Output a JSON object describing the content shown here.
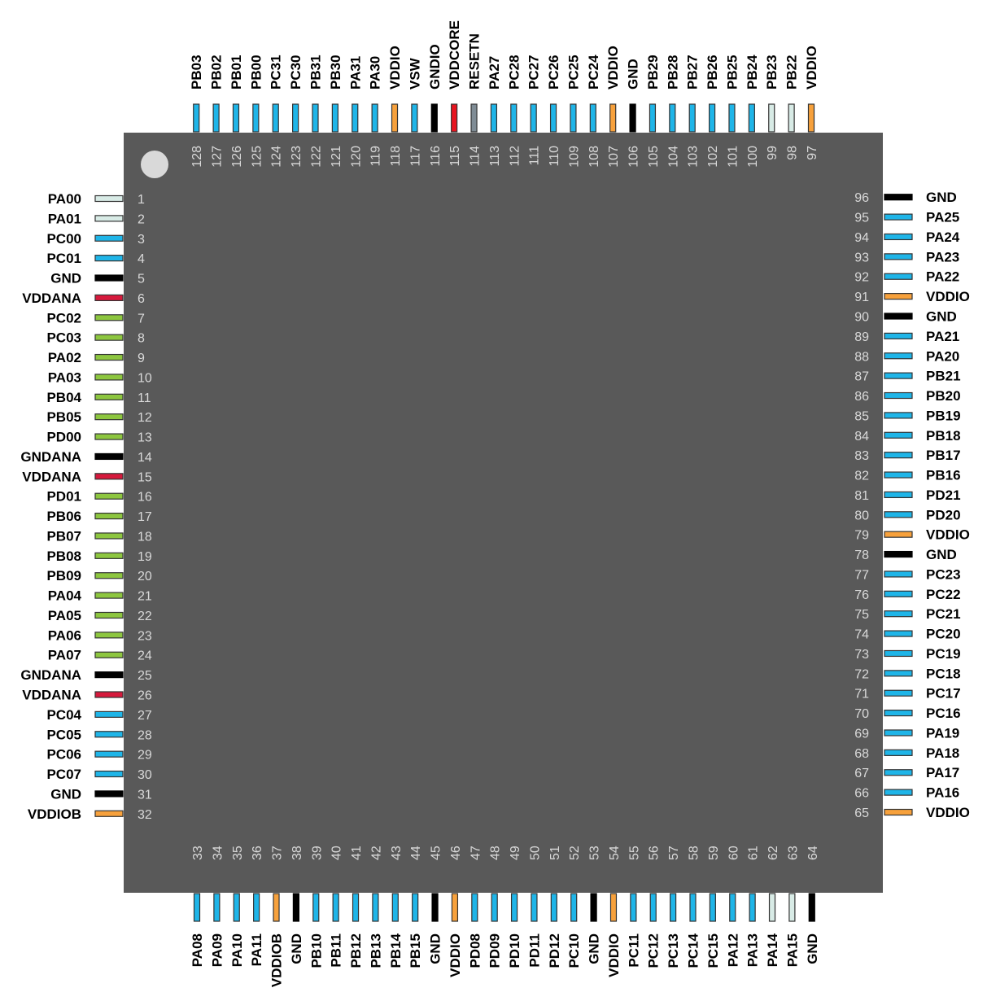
{
  "colors": {
    "body": "#595959",
    "index_dot": "#d9d9d9",
    "pin_outline": "#333333",
    "pin_types": {
      "io": "#1fb5e8",
      "analog": "#8dc63f",
      "gnd": "#000000",
      "vddio": "#f7a13c",
      "vddana": "#d6193c",
      "vddcore": "#e8141f",
      "resetn": "#7f8c95",
      "osc": "#d8ebe6"
    }
  },
  "pins": {
    "left": [
      {
        "num": "1",
        "name": "PA00",
        "type": "osc"
      },
      {
        "num": "2",
        "name": "PA01",
        "type": "osc"
      },
      {
        "num": "3",
        "name": "PC00",
        "type": "io"
      },
      {
        "num": "4",
        "name": "PC01",
        "type": "io"
      },
      {
        "num": "5",
        "name": "GND",
        "type": "gnd"
      },
      {
        "num": "6",
        "name": "VDDANA",
        "type": "vddana"
      },
      {
        "num": "7",
        "name": "PC02",
        "type": "analog"
      },
      {
        "num": "8",
        "name": "PC03",
        "type": "analog"
      },
      {
        "num": "9",
        "name": "PA02",
        "type": "analog"
      },
      {
        "num": "10",
        "name": "PA03",
        "type": "analog"
      },
      {
        "num": "11",
        "name": "PB04",
        "type": "analog"
      },
      {
        "num": "12",
        "name": "PB05",
        "type": "analog"
      },
      {
        "num": "13",
        "name": "PD00",
        "type": "analog"
      },
      {
        "num": "14",
        "name": "GNDANA",
        "type": "gnd"
      },
      {
        "num": "15",
        "name": "VDDANA",
        "type": "vddana"
      },
      {
        "num": "16",
        "name": "PD01",
        "type": "analog"
      },
      {
        "num": "17",
        "name": "PB06",
        "type": "analog"
      },
      {
        "num": "18",
        "name": "PB07",
        "type": "analog"
      },
      {
        "num": "19",
        "name": "PB08",
        "type": "analog"
      },
      {
        "num": "20",
        "name": "PB09",
        "type": "analog"
      },
      {
        "num": "21",
        "name": "PA04",
        "type": "analog"
      },
      {
        "num": "22",
        "name": "PA05",
        "type": "analog"
      },
      {
        "num": "23",
        "name": "PA06",
        "type": "analog"
      },
      {
        "num": "24",
        "name": "PA07",
        "type": "analog"
      },
      {
        "num": "25",
        "name": "GNDANA",
        "type": "gnd"
      },
      {
        "num": "26",
        "name": "VDDANA",
        "type": "vddana"
      },
      {
        "num": "27",
        "name": "PC04",
        "type": "io"
      },
      {
        "num": "28",
        "name": "PC05",
        "type": "io"
      },
      {
        "num": "29",
        "name": "PC06",
        "type": "io"
      },
      {
        "num": "30",
        "name": "PC07",
        "type": "io"
      },
      {
        "num": "31",
        "name": "GND",
        "type": "gnd"
      },
      {
        "num": "32",
        "name": "VDDIOB",
        "type": "vddio"
      }
    ],
    "bottom": [
      {
        "num": "33",
        "name": "PA08",
        "type": "io"
      },
      {
        "num": "34",
        "name": "PA09",
        "type": "io"
      },
      {
        "num": "35",
        "name": "PA10",
        "type": "io"
      },
      {
        "num": "36",
        "name": "PA11",
        "type": "io"
      },
      {
        "num": "37",
        "name": "VDDIOB",
        "type": "vddio"
      },
      {
        "num": "38",
        "name": "GND",
        "type": "gnd"
      },
      {
        "num": "39",
        "name": "PB10",
        "type": "io"
      },
      {
        "num": "40",
        "name": "PB11",
        "type": "io"
      },
      {
        "num": "41",
        "name": "PB12",
        "type": "io"
      },
      {
        "num": "42",
        "name": "PB13",
        "type": "io"
      },
      {
        "num": "43",
        "name": "PB14",
        "type": "io"
      },
      {
        "num": "44",
        "name": "PB15",
        "type": "io"
      },
      {
        "num": "45",
        "name": "GND",
        "type": "gnd"
      },
      {
        "num": "46",
        "name": "VDDIO",
        "type": "vddio"
      },
      {
        "num": "47",
        "name": "PD08",
        "type": "io"
      },
      {
        "num": "48",
        "name": "PD09",
        "type": "io"
      },
      {
        "num": "49",
        "name": "PD10",
        "type": "io"
      },
      {
        "num": "50",
        "name": "PD11",
        "type": "io"
      },
      {
        "num": "51",
        "name": "PD12",
        "type": "io"
      },
      {
        "num": "52",
        "name": "PC10",
        "type": "io"
      },
      {
        "num": "53",
        "name": "GND",
        "type": "gnd"
      },
      {
        "num": "54",
        "name": "VDDIO",
        "type": "vddio"
      },
      {
        "num": "55",
        "name": "PC11",
        "type": "io"
      },
      {
        "num": "56",
        "name": "PC12",
        "type": "io"
      },
      {
        "num": "57",
        "name": "PC13",
        "type": "io"
      },
      {
        "num": "58",
        "name": "PC14",
        "type": "io"
      },
      {
        "num": "59",
        "name": "PC15",
        "type": "io"
      },
      {
        "num": "60",
        "name": "PA12",
        "type": "io"
      },
      {
        "num": "61",
        "name": "PA13",
        "type": "io"
      },
      {
        "num": "62",
        "name": "PA14",
        "type": "osc"
      },
      {
        "num": "63",
        "name": "PA15",
        "type": "osc"
      },
      {
        "num": "64",
        "name": "GND",
        "type": "gnd"
      }
    ],
    "right": [
      {
        "num": "65",
        "name": "VDDIO",
        "type": "vddio"
      },
      {
        "num": "66",
        "name": "PA16",
        "type": "io"
      },
      {
        "num": "67",
        "name": "PA17",
        "type": "io"
      },
      {
        "num": "68",
        "name": "PA18",
        "type": "io"
      },
      {
        "num": "69",
        "name": "PA19",
        "type": "io"
      },
      {
        "num": "70",
        "name": "PC16",
        "type": "io"
      },
      {
        "num": "71",
        "name": "PC17",
        "type": "io"
      },
      {
        "num": "72",
        "name": "PC18",
        "type": "io"
      },
      {
        "num": "73",
        "name": "PC19",
        "type": "io"
      },
      {
        "num": "74",
        "name": "PC20",
        "type": "io"
      },
      {
        "num": "75",
        "name": "PC21",
        "type": "io"
      },
      {
        "num": "76",
        "name": "PC22",
        "type": "io"
      },
      {
        "num": "77",
        "name": "PC23",
        "type": "io"
      },
      {
        "num": "78",
        "name": "GND",
        "type": "gnd"
      },
      {
        "num": "79",
        "name": "VDDIO",
        "type": "vddio"
      },
      {
        "num": "80",
        "name": "PD20",
        "type": "io"
      },
      {
        "num": "81",
        "name": "PD21",
        "type": "io"
      },
      {
        "num": "82",
        "name": "PB16",
        "type": "io"
      },
      {
        "num": "83",
        "name": "PB17",
        "type": "io"
      },
      {
        "num": "84",
        "name": "PB18",
        "type": "io"
      },
      {
        "num": "85",
        "name": "PB19",
        "type": "io"
      },
      {
        "num": "86",
        "name": "PB20",
        "type": "io"
      },
      {
        "num": "87",
        "name": "PB21",
        "type": "io"
      },
      {
        "num": "88",
        "name": "PA20",
        "type": "io"
      },
      {
        "num": "89",
        "name": "PA21",
        "type": "io"
      },
      {
        "num": "90",
        "name": "GND",
        "type": "gnd"
      },
      {
        "num": "91",
        "name": "VDDIO",
        "type": "vddio"
      },
      {
        "num": "92",
        "name": "PA22",
        "type": "io"
      },
      {
        "num": "93",
        "name": "PA23",
        "type": "io"
      },
      {
        "num": "94",
        "name": "PA24",
        "type": "io"
      },
      {
        "num": "95",
        "name": "PA25",
        "type": "io"
      },
      {
        "num": "96",
        "name": "GND",
        "type": "gnd"
      }
    ],
    "top": [
      {
        "num": "97",
        "name": "VDDIO",
        "type": "vddio"
      },
      {
        "num": "98",
        "name": "PB22",
        "type": "osc"
      },
      {
        "num": "99",
        "name": "PB23",
        "type": "osc"
      },
      {
        "num": "100",
        "name": "PB24",
        "type": "io"
      },
      {
        "num": "101",
        "name": "PB25",
        "type": "io"
      },
      {
        "num": "102",
        "name": "PB26",
        "type": "io"
      },
      {
        "num": "103",
        "name": "PB27",
        "type": "io"
      },
      {
        "num": "104",
        "name": "PB28",
        "type": "io"
      },
      {
        "num": "105",
        "name": "PB29",
        "type": "io"
      },
      {
        "num": "106",
        "name": "GND",
        "type": "gnd"
      },
      {
        "num": "107",
        "name": "VDDIO",
        "type": "vddio"
      },
      {
        "num": "108",
        "name": "PC24",
        "type": "io"
      },
      {
        "num": "109",
        "name": "PC25",
        "type": "io"
      },
      {
        "num": "110",
        "name": "PC26",
        "type": "io"
      },
      {
        "num": "111",
        "name": "PC27",
        "type": "io"
      },
      {
        "num": "112",
        "name": "PC28",
        "type": "io"
      },
      {
        "num": "113",
        "name": "PA27",
        "type": "io"
      },
      {
        "num": "114",
        "name": "RESETN",
        "type": "resetn"
      },
      {
        "num": "115",
        "name": "VDDCORE",
        "type": "vddcore"
      },
      {
        "num": "116",
        "name": "GNDIO",
        "type": "gnd"
      },
      {
        "num": "117",
        "name": "VSW",
        "type": "io"
      },
      {
        "num": "118",
        "name": "VDDIO",
        "type": "vddio"
      },
      {
        "num": "119",
        "name": "PA30",
        "type": "io"
      },
      {
        "num": "120",
        "name": "PA31",
        "type": "io"
      },
      {
        "num": "121",
        "name": "PB30",
        "type": "io"
      },
      {
        "num": "122",
        "name": "PB31",
        "type": "io"
      },
      {
        "num": "123",
        "name": "PC30",
        "type": "io"
      },
      {
        "num": "124",
        "name": "PC31",
        "type": "io"
      },
      {
        "num": "125",
        "name": "PB00",
        "type": "io"
      },
      {
        "num": "126",
        "name": "PB01",
        "type": "io"
      },
      {
        "num": "127",
        "name": "PB02",
        "type": "io"
      },
      {
        "num": "128",
        "name": "PB03",
        "type": "io"
      }
    ]
  }
}
